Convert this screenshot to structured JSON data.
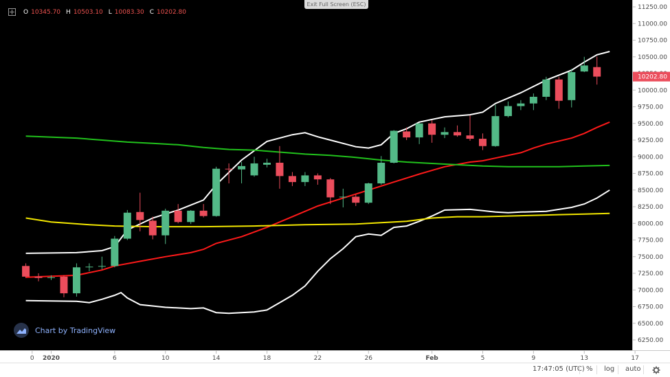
{
  "header": {
    "exit_fullscreen_label": "Exit Full Screen (ESC)",
    "ohlc": {
      "o_label": "O",
      "o_value": "10345.70",
      "h_label": "H",
      "h_value": "10503.10",
      "l_label": "L",
      "l_value": "10083.30",
      "c_label": "C",
      "c_value": "10202.80"
    }
  },
  "watermark": {
    "text": "Chart by TradingView"
  },
  "bottom_bar": {
    "time": "17:47:05 (UTC)",
    "percent_label": "%",
    "log_label": "log",
    "auto_label": "auto"
  },
  "colors": {
    "up": "#53b987",
    "down": "#eb4d5c",
    "background": "#000000",
    "bollinger": "#ffffff",
    "ma_short": "#ff1a1a",
    "ma_mid": "#21c21c",
    "ma_long": "#f2e600"
  },
  "chart_data": {
    "type": "candlestick",
    "last_price_label": "10202.80",
    "ylim": [
      6000,
      11250
    ],
    "y_ticks": [
      "11250.00",
      "11000.00",
      "10750.00",
      "10500.00",
      "10250.00",
      "10000.00",
      "9750.00",
      "9500.00",
      "9250.00",
      "9000.00",
      "8750.00",
      "8500.00",
      "8250.00",
      "8000.00",
      "7750.00",
      "7500.00",
      "7250.00",
      "7000.00",
      "6750.00",
      "6500.00",
      "6250.00"
    ],
    "x_ticks": [
      {
        "label": "0",
        "day": -1.5
      },
      {
        "label": "2020",
        "day": 0
      },
      {
        "label": "6",
        "day": 5
      },
      {
        "label": "10",
        "day": 9
      },
      {
        "label": "14",
        "day": 13
      },
      {
        "label": "18",
        "day": 17
      },
      {
        "label": "22",
        "day": 21
      },
      {
        "label": "26",
        "day": 25
      },
      {
        "label": "Feb",
        "day": 30
      },
      {
        "label": "5",
        "day": 34
      },
      {
        "label": "9",
        "day": 38
      },
      {
        "label": "13",
        "day": 42
      },
      {
        "label": "17",
        "day": 46
      }
    ],
    "candles": [
      {
        "day": -2,
        "o": 7360,
        "h": 7400,
        "l": 7180,
        "c": 7200
      },
      {
        "day": -1,
        "o": 7200,
        "h": 7250,
        "l": 7130,
        "c": 7180
      },
      {
        "day": 0,
        "o": 7180,
        "h": 7220,
        "l": 7150,
        "c": 7190
      },
      {
        "day": 1,
        "o": 7200,
        "h": 7220,
        "l": 6890,
        "c": 6950
      },
      {
        "day": 2,
        "o": 6950,
        "h": 7400,
        "l": 6900,
        "c": 7340
      },
      {
        "day": 3,
        "o": 7340,
        "h": 7400,
        "l": 7280,
        "c": 7350
      },
      {
        "day": 4,
        "o": 7350,
        "h": 7500,
        "l": 7310,
        "c": 7360
      },
      {
        "day": 5,
        "o": 7360,
        "h": 7810,
        "l": 7340,
        "c": 7770
      },
      {
        "day": 6,
        "o": 7770,
        "h": 8200,
        "l": 7750,
        "c": 8160
      },
      {
        "day": 7,
        "o": 8170,
        "h": 8460,
        "l": 7880,
        "c": 8050
      },
      {
        "day": 8,
        "o": 8040,
        "h": 8100,
        "l": 7760,
        "c": 7820
      },
      {
        "day": 9,
        "o": 7820,
        "h": 8220,
        "l": 7690,
        "c": 8190
      },
      {
        "day": 10,
        "o": 8190,
        "h": 8290,
        "l": 8000,
        "c": 8020
      },
      {
        "day": 11,
        "o": 8020,
        "h": 8200,
        "l": 7990,
        "c": 8190
      },
      {
        "day": 12,
        "o": 8190,
        "h": 8290,
        "l": 8090,
        "c": 8110
      },
      {
        "day": 13,
        "o": 8110,
        "h": 8850,
        "l": 8100,
        "c": 8820
      },
      {
        "day": 14,
        "o": 8820,
        "h": 8900,
        "l": 8600,
        "c": 8810
      },
      {
        "day": 15,
        "o": 8810,
        "h": 8920,
        "l": 8600,
        "c": 8860
      },
      {
        "day": 16,
        "o": 8720,
        "h": 9000,
        "l": 8700,
        "c": 8900
      },
      {
        "day": 17,
        "o": 8880,
        "h": 8970,
        "l": 8840,
        "c": 8910
      },
      {
        "day": 18,
        "o": 8910,
        "h": 9160,
        "l": 8520,
        "c": 8710
      },
      {
        "day": 19,
        "o": 8710,
        "h": 8770,
        "l": 8560,
        "c": 8620
      },
      {
        "day": 20,
        "o": 8620,
        "h": 8770,
        "l": 8560,
        "c": 8720
      },
      {
        "day": 21,
        "o": 8720,
        "h": 8750,
        "l": 8580,
        "c": 8660
      },
      {
        "day": 22,
        "o": 8660,
        "h": 8680,
        "l": 8290,
        "c": 8390
      },
      {
        "day": 23,
        "o": 8390,
        "h": 8520,
        "l": 8240,
        "c": 8400
      },
      {
        "day": 24,
        "o": 8400,
        "h": 8430,
        "l": 8260,
        "c": 8310
      },
      {
        "day": 25,
        "o": 8310,
        "h": 8610,
        "l": 8290,
        "c": 8600
      },
      {
        "day": 26,
        "o": 8600,
        "h": 9010,
        "l": 8580,
        "c": 8910
      },
      {
        "day": 27,
        "o": 8910,
        "h": 9400,
        "l": 8900,
        "c": 9390
      },
      {
        "day": 28,
        "o": 9380,
        "h": 9440,
        "l": 9250,
        "c": 9290
      },
      {
        "day": 29,
        "o": 9290,
        "h": 9510,
        "l": 9190,
        "c": 9500
      },
      {
        "day": 30,
        "o": 9500,
        "h": 9550,
        "l": 9210,
        "c": 9330
      },
      {
        "day": 31,
        "o": 9330,
        "h": 9440,
        "l": 9280,
        "c": 9370
      },
      {
        "day": 32,
        "o": 9370,
        "h": 9470,
        "l": 9300,
        "c": 9320
      },
      {
        "day": 33,
        "o": 9320,
        "h": 9620,
        "l": 9240,
        "c": 9270
      },
      {
        "day": 34,
        "o": 9270,
        "h": 9350,
        "l": 9100,
        "c": 9160
      },
      {
        "day": 35,
        "o": 9160,
        "h": 9780,
        "l": 9150,
        "c": 9610
      },
      {
        "day": 36,
        "o": 9610,
        "h": 9830,
        "l": 9590,
        "c": 9760
      },
      {
        "day": 37,
        "o": 9760,
        "h": 9850,
        "l": 9700,
        "c": 9800
      },
      {
        "day": 38,
        "o": 9800,
        "h": 9950,
        "l": 9700,
        "c": 9900
      },
      {
        "day": 39,
        "o": 9900,
        "h": 10200,
        "l": 9850,
        "c": 10160
      },
      {
        "day": 40,
        "o": 10160,
        "h": 10200,
        "l": 9720,
        "c": 9840
      },
      {
        "day": 41,
        "o": 9850,
        "h": 10320,
        "l": 9740,
        "c": 10270
      },
      {
        "day": 42,
        "o": 10280,
        "h": 10500,
        "l": 10270,
        "c": 10370
      },
      {
        "day": 43,
        "o": 10345.7,
        "h": 10503.1,
        "l": 10083.3,
        "c": 10202.8
      }
    ],
    "series": [
      {
        "name": "",
        "color": "#ffffff",
        "points": [
          [
            -2,
            7550
          ],
          [
            2,
            7560
          ],
          [
            4,
            7590
          ],
          [
            5,
            7650
          ],
          [
            6,
            7900
          ],
          [
            8,
            8080
          ],
          [
            10,
            8200
          ],
          [
            12,
            8350
          ],
          [
            13,
            8580
          ],
          [
            15,
            8950
          ],
          [
            17,
            9230
          ],
          [
            19,
            9330
          ],
          [
            20,
            9360
          ],
          [
            21,
            9300
          ],
          [
            22,
            9250
          ],
          [
            24,
            9150
          ],
          [
            25,
            9130
          ],
          [
            26,
            9180
          ],
          [
            27,
            9350
          ],
          [
            28,
            9420
          ],
          [
            29,
            9520
          ],
          [
            31,
            9600
          ],
          [
            33,
            9630
          ],
          [
            34,
            9670
          ],
          [
            35,
            9800
          ],
          [
            37,
            9960
          ],
          [
            39,
            10150
          ],
          [
            41,
            10300
          ],
          [
            42,
            10420
          ],
          [
            43,
            10530
          ],
          [
            44,
            10580
          ]
        ]
      },
      {
        "name": "",
        "color": "#ffffff",
        "points": [
          [
            -2,
            6840
          ],
          [
            2,
            6830
          ],
          [
            3,
            6810
          ],
          [
            4,
            6860
          ],
          [
            5,
            6920
          ],
          [
            5.5,
            6960
          ],
          [
            6,
            6880
          ],
          [
            7,
            6780
          ],
          [
            9,
            6740
          ],
          [
            11,
            6720
          ],
          [
            12,
            6730
          ],
          [
            13,
            6660
          ],
          [
            14,
            6650
          ],
          [
            16,
            6670
          ],
          [
            17,
            6700
          ],
          [
            18,
            6810
          ],
          [
            19,
            6920
          ],
          [
            20,
            7060
          ],
          [
            21,
            7280
          ],
          [
            22,
            7470
          ],
          [
            23,
            7620
          ],
          [
            24,
            7800
          ],
          [
            25,
            7840
          ],
          [
            26,
            7820
          ],
          [
            27,
            7940
          ],
          [
            28,
            7960
          ],
          [
            29,
            8030
          ],
          [
            30,
            8110
          ],
          [
            31,
            8200
          ],
          [
            33,
            8210
          ],
          [
            34,
            8190
          ],
          [
            35,
            8170
          ],
          [
            36,
            8160
          ],
          [
            37,
            8170
          ],
          [
            39,
            8180
          ],
          [
            41,
            8240
          ],
          [
            42,
            8290
          ],
          [
            43,
            8380
          ],
          [
            44,
            8500
          ]
        ]
      },
      {
        "name": "",
        "color": "#ff1a1a",
        "points": [
          [
            -2,
            7190
          ],
          [
            2,
            7220
          ],
          [
            4,
            7300
          ],
          [
            5,
            7360
          ],
          [
            7,
            7430
          ],
          [
            9,
            7500
          ],
          [
            11,
            7560
          ],
          [
            12,
            7610
          ],
          [
            13,
            7700
          ],
          [
            15,
            7800
          ],
          [
            17,
            7940
          ],
          [
            19,
            8100
          ],
          [
            21,
            8260
          ],
          [
            23,
            8380
          ],
          [
            25,
            8500
          ],
          [
            27,
            8620
          ],
          [
            29,
            8740
          ],
          [
            31,
            8850
          ],
          [
            33,
            8920
          ],
          [
            34,
            8940
          ],
          [
            35,
            8980
          ],
          [
            37,
            9060
          ],
          [
            38,
            9130
          ],
          [
            39,
            9190
          ],
          [
            41,
            9280
          ],
          [
            42,
            9350
          ],
          [
            43,
            9440
          ],
          [
            44,
            9520
          ]
        ]
      },
      {
        "name": "",
        "color": "#21c21c",
        "points": [
          [
            -2,
            9310
          ],
          [
            2,
            9280
          ],
          [
            4,
            9250
          ],
          [
            6,
            9220
          ],
          [
            8,
            9200
          ],
          [
            10,
            9180
          ],
          [
            12,
            9140
          ],
          [
            14,
            9110
          ],
          [
            16,
            9100
          ],
          [
            18,
            9070
          ],
          [
            20,
            9040
          ],
          [
            22,
            9020
          ],
          [
            24,
            8990
          ],
          [
            26,
            8950
          ],
          [
            28,
            8920
          ],
          [
            30,
            8900
          ],
          [
            32,
            8880
          ],
          [
            34,
            8860
          ],
          [
            36,
            8850
          ],
          [
            38,
            8850
          ],
          [
            40,
            8850
          ],
          [
            42,
            8860
          ],
          [
            44,
            8870
          ]
        ]
      },
      {
        "name": "",
        "color": "#f2e600",
        "points": [
          [
            -2,
            8080
          ],
          [
            0,
            8020
          ],
          [
            3,
            7980
          ],
          [
            5,
            7960
          ],
          [
            8,
            7950
          ],
          [
            12,
            7950
          ],
          [
            16,
            7960
          ],
          [
            20,
            7980
          ],
          [
            24,
            7990
          ],
          [
            26,
            8010
          ],
          [
            28,
            8030
          ],
          [
            30,
            8080
          ],
          [
            32,
            8100
          ],
          [
            34,
            8100
          ],
          [
            36,
            8110
          ],
          [
            38,
            8120
          ],
          [
            40,
            8130
          ],
          [
            42,
            8140
          ],
          [
            44,
            8150
          ]
        ]
      }
    ]
  }
}
